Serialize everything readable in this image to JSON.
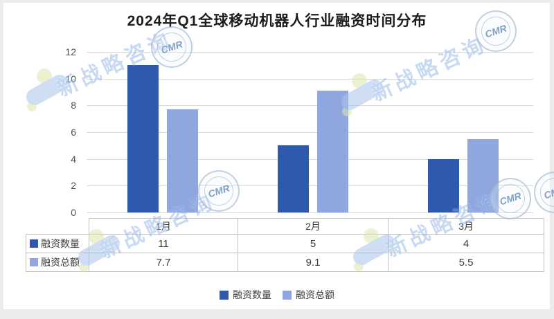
{
  "title": "2024年Q1全球移动机器人行业融资时间分布",
  "chart_data": {
    "type": "bar",
    "title": "2024年Q1全球移动机器人行业融资时间分布",
    "categories": [
      "1月",
      "2月",
      "3月"
    ],
    "series": [
      {
        "name": "融资数量",
        "color": "#2e59ad",
        "values": [
          11,
          5,
          4
        ]
      },
      {
        "name": "融资总额",
        "color": "#8fa6de",
        "values": [
          7.7,
          9.1,
          5.5
        ]
      }
    ],
    "xlabel": "",
    "ylabel": "",
    "ylim": [
      0,
      12
    ],
    "yticks": [
      0,
      2,
      4,
      6,
      8,
      10,
      12
    ],
    "grid": true,
    "gridline_color": "#d9d9d9",
    "legend_position": "bottom",
    "data_table_shown": true
  },
  "watermark": {
    "text": "新战略咨询",
    "stamp_text": "CMR",
    "blob_color": "#a9c4ea",
    "dot_color": "#dde9ad"
  }
}
